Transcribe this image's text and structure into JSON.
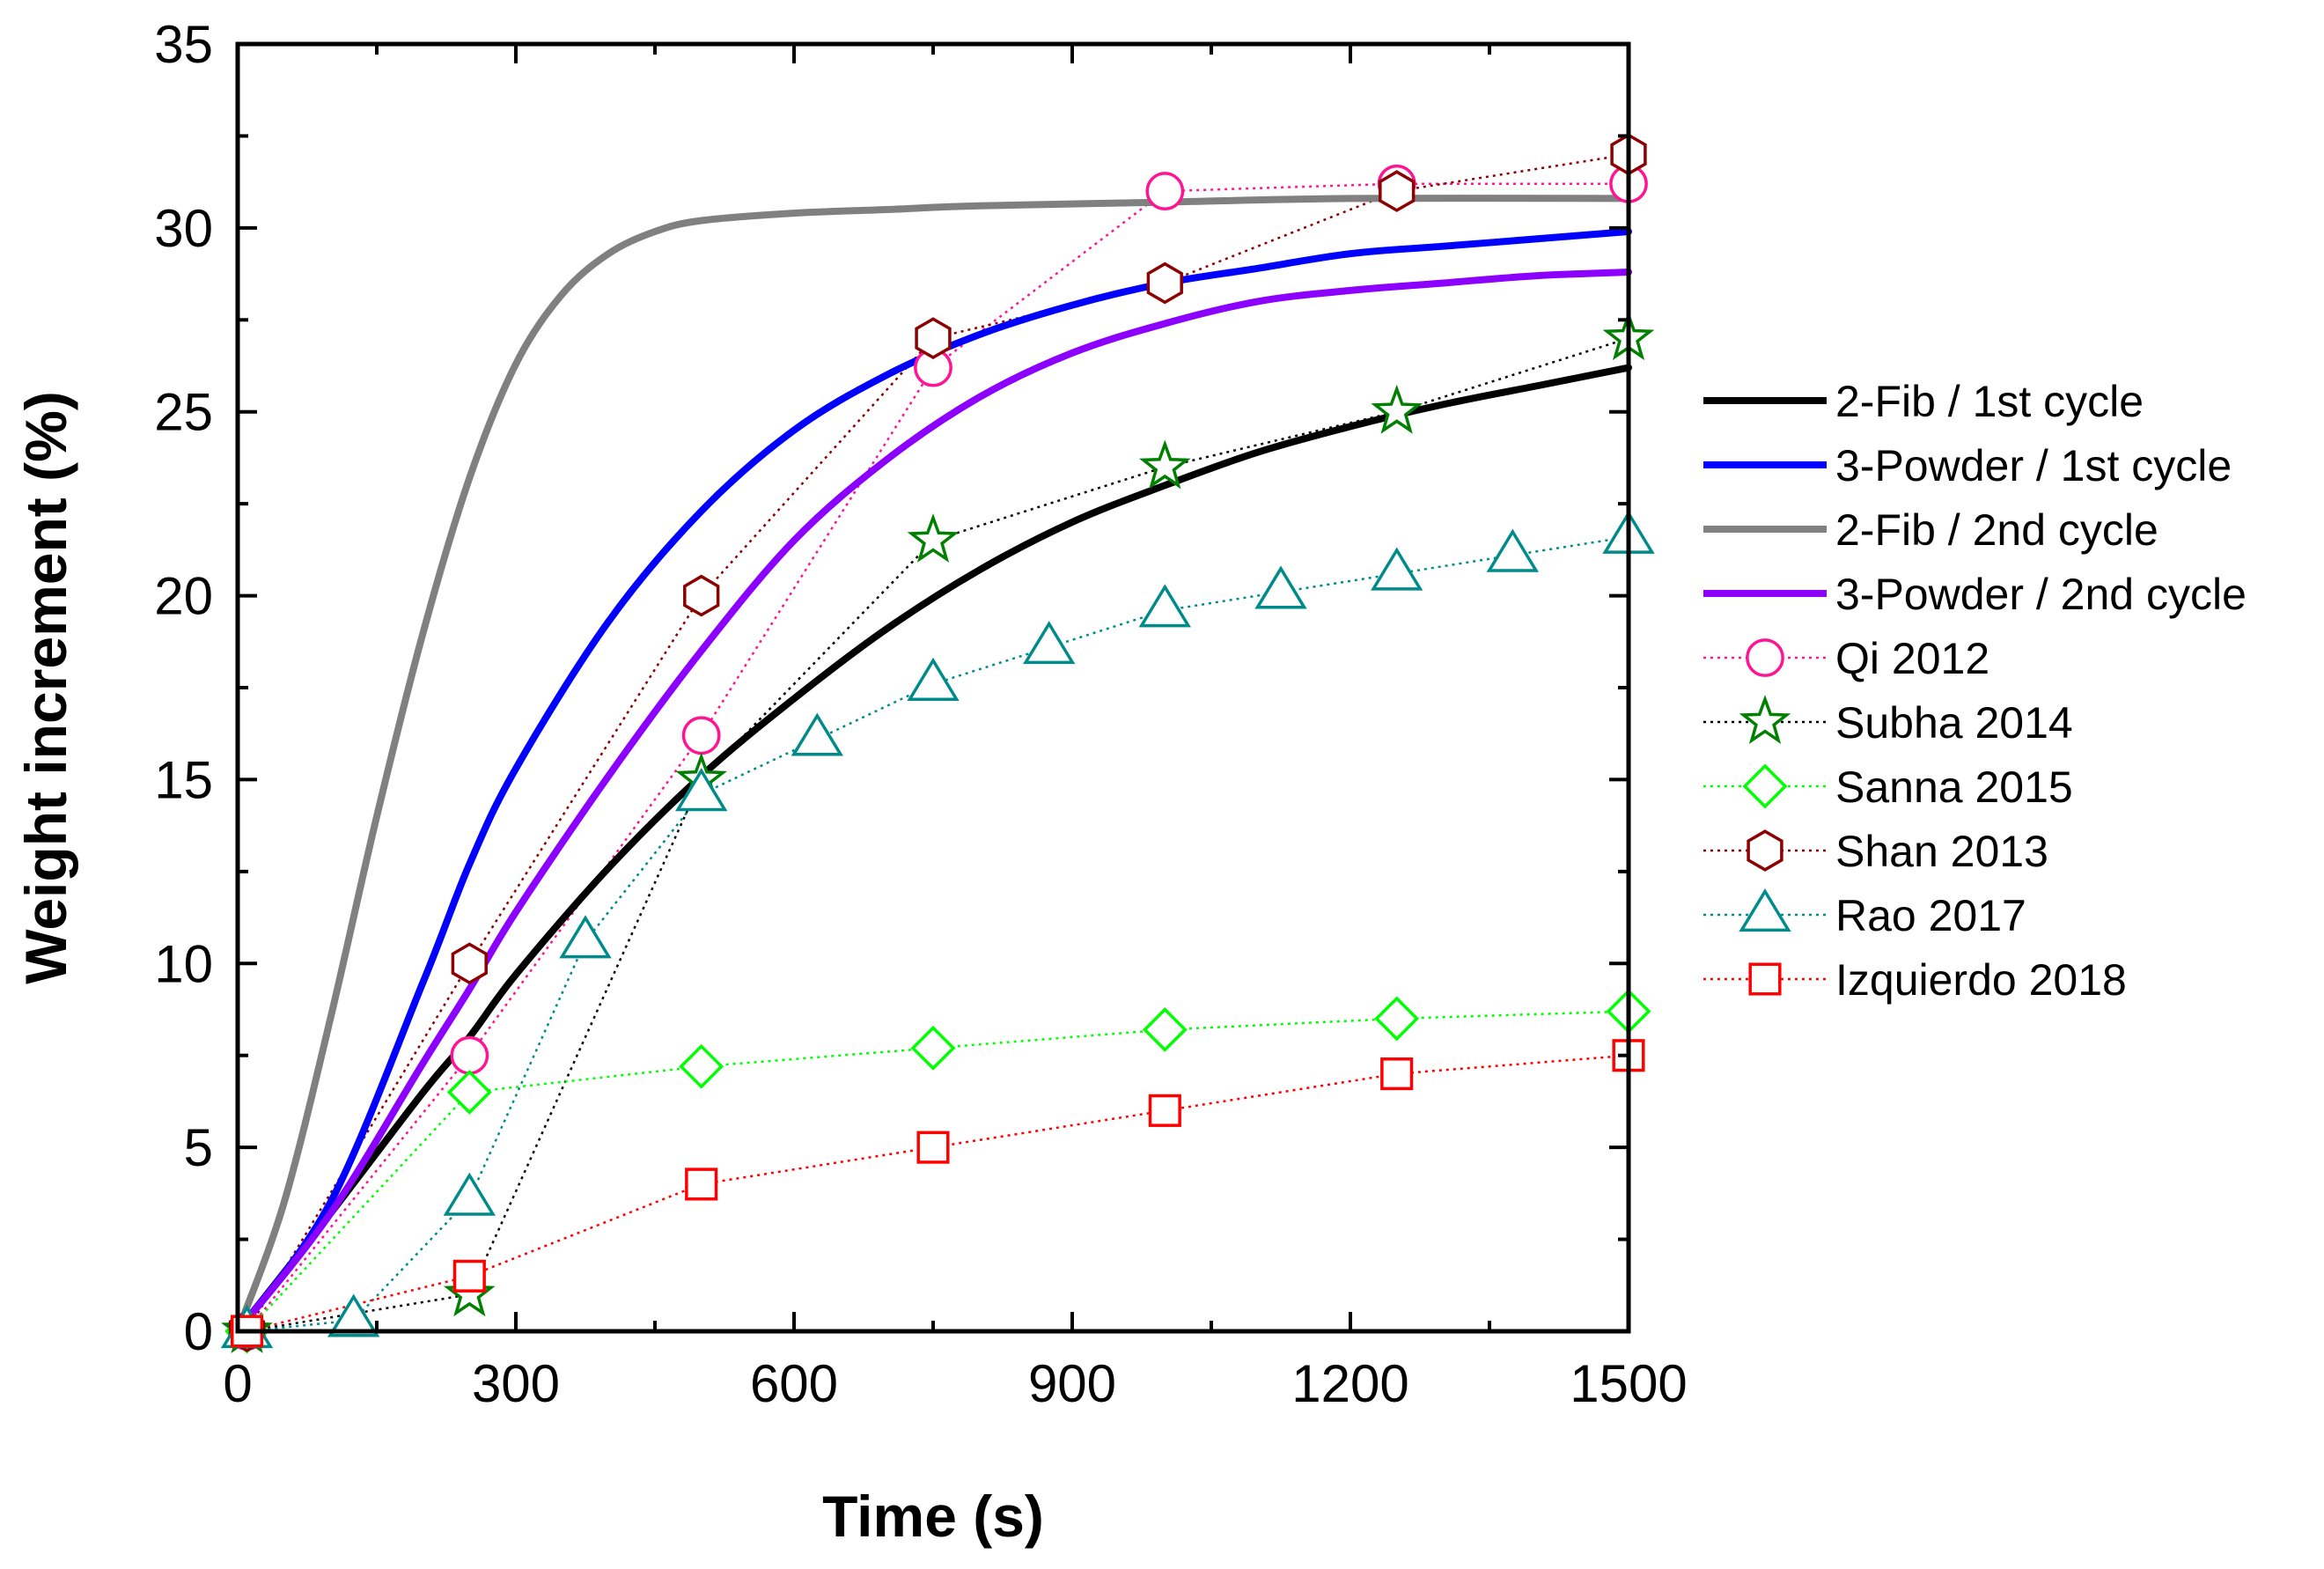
{
  "chart_data": {
    "type": "line",
    "title": "",
    "xlabel": "Time (s)",
    "ylabel": "Weight increment (%)",
    "xlim": [
      0,
      1500
    ],
    "ylim": [
      0,
      35
    ],
    "xticks": [
      0,
      300,
      600,
      900,
      1200,
      1500
    ],
    "yticks": [
      0,
      5,
      10,
      15,
      20,
      25,
      30,
      35
    ],
    "xtick_labels": [
      "0",
      "300",
      "600",
      "900",
      "1200",
      "1500"
    ],
    "ytick_labels": [
      "0",
      "5",
      "10",
      "15",
      "20",
      "25",
      "30",
      "35"
    ],
    "grid": false,
    "legend_position": "right",
    "series": [
      {
        "name": "2-Fib / 1st cycle",
        "style": "line",
        "color": "#000000",
        "x": [
          0,
          100,
          200,
          250,
          300,
          400,
          500,
          600,
          700,
          800,
          900,
          1000,
          1100,
          1200,
          1300,
          1400,
          1500
        ],
        "y": [
          0,
          3.2,
          6.5,
          8.0,
          9.7,
          12.6,
          15.1,
          17.2,
          19.1,
          20.7,
          22.0,
          23.0,
          23.9,
          24.6,
          25.2,
          25.7,
          26.2
        ]
      },
      {
        "name": "3-Powder / 1st cycle",
        "style": "line",
        "color": "#0000ff",
        "x": [
          0,
          100,
          200,
          250,
          300,
          400,
          500,
          600,
          700,
          800,
          900,
          1000,
          1100,
          1200,
          1300,
          1400,
          1500
        ],
        "y": [
          0,
          3.5,
          9.5,
          12.7,
          15.3,
          19.3,
          22.3,
          24.5,
          26.0,
          27.1,
          27.9,
          28.5,
          28.9,
          29.3,
          29.5,
          29.7,
          29.9
        ]
      },
      {
        "name": "2-Fib / 2nd cycle",
        "style": "line",
        "color": "#808080",
        "x": [
          0,
          50,
          100,
          150,
          200,
          250,
          300,
          350,
          400,
          450,
          500,
          600,
          700,
          800,
          1000,
          1200,
          1500
        ],
        "y": [
          0,
          3.5,
          8.5,
          14.0,
          19.0,
          23.2,
          26.3,
          28.2,
          29.3,
          29.9,
          30.2,
          30.4,
          30.5,
          30.6,
          30.7,
          30.8,
          30.8
        ]
      },
      {
        "name": "3-Powder / 2nd cycle",
        "style": "line",
        "color": "#8b00ff",
        "x": [
          0,
          100,
          200,
          250,
          300,
          400,
          500,
          600,
          700,
          800,
          900,
          1000,
          1100,
          1200,
          1300,
          1400,
          1500
        ],
        "y": [
          0,
          3.2,
          7.3,
          9.3,
          11.4,
          15.1,
          18.5,
          21.5,
          23.7,
          25.4,
          26.6,
          27.4,
          28.0,
          28.3,
          28.5,
          28.7,
          28.8
        ]
      },
      {
        "name": "Qi 2012",
        "style": "dotted-marker",
        "marker": "circle",
        "color": "#ff1493",
        "x": [
          10,
          250,
          500,
          750,
          1000,
          1250,
          1500
        ],
        "y": [
          0,
          7.5,
          16.2,
          26.2,
          31.0,
          31.2,
          31.2
        ]
      },
      {
        "name": "Subha 2014",
        "style": "dotted-marker",
        "marker": "star",
        "color": "#008000",
        "line_color": "#000000",
        "x": [
          10,
          250,
          500,
          750,
          1000,
          1250,
          1500
        ],
        "y": [
          0,
          1.0,
          15.0,
          21.5,
          23.5,
          25.0,
          27.0
        ]
      },
      {
        "name": "Sanna 2015",
        "style": "dotted-marker",
        "marker": "diamond",
        "color": "#00ff00",
        "x": [
          10,
          250,
          500,
          750,
          1000,
          1250,
          1500
        ],
        "y": [
          0,
          6.5,
          7.2,
          7.7,
          8.2,
          8.5,
          8.7
        ]
      },
      {
        "name": "Shan 2013",
        "style": "dotted-marker",
        "marker": "hexagon",
        "color": "#8b0000",
        "x": [
          10,
          250,
          500,
          750,
          1000,
          1250,
          1500
        ],
        "y": [
          0,
          10.0,
          20.0,
          27.0,
          28.5,
          31.0,
          32.0
        ]
      },
      {
        "name": "Rao 2017",
        "style": "dotted-marker",
        "marker": "triangle",
        "color": "#008b8b",
        "x": [
          10,
          125,
          250,
          375,
          500,
          625,
          750,
          875,
          1000,
          1125,
          1250,
          1375,
          1500
        ],
        "y": [
          0,
          0.3,
          3.6,
          10.6,
          14.6,
          16.1,
          17.6,
          18.6,
          19.6,
          20.1,
          20.6,
          21.1,
          21.6
        ]
      },
      {
        "name": "Izquierdo 2018",
        "style": "dotted-marker",
        "marker": "square",
        "color": "#ff0000",
        "x": [
          10,
          250,
          500,
          750,
          1000,
          1250,
          1500
        ],
        "y": [
          0,
          1.5,
          4.0,
          5.0,
          6.0,
          7.0,
          7.5
        ]
      }
    ]
  }
}
